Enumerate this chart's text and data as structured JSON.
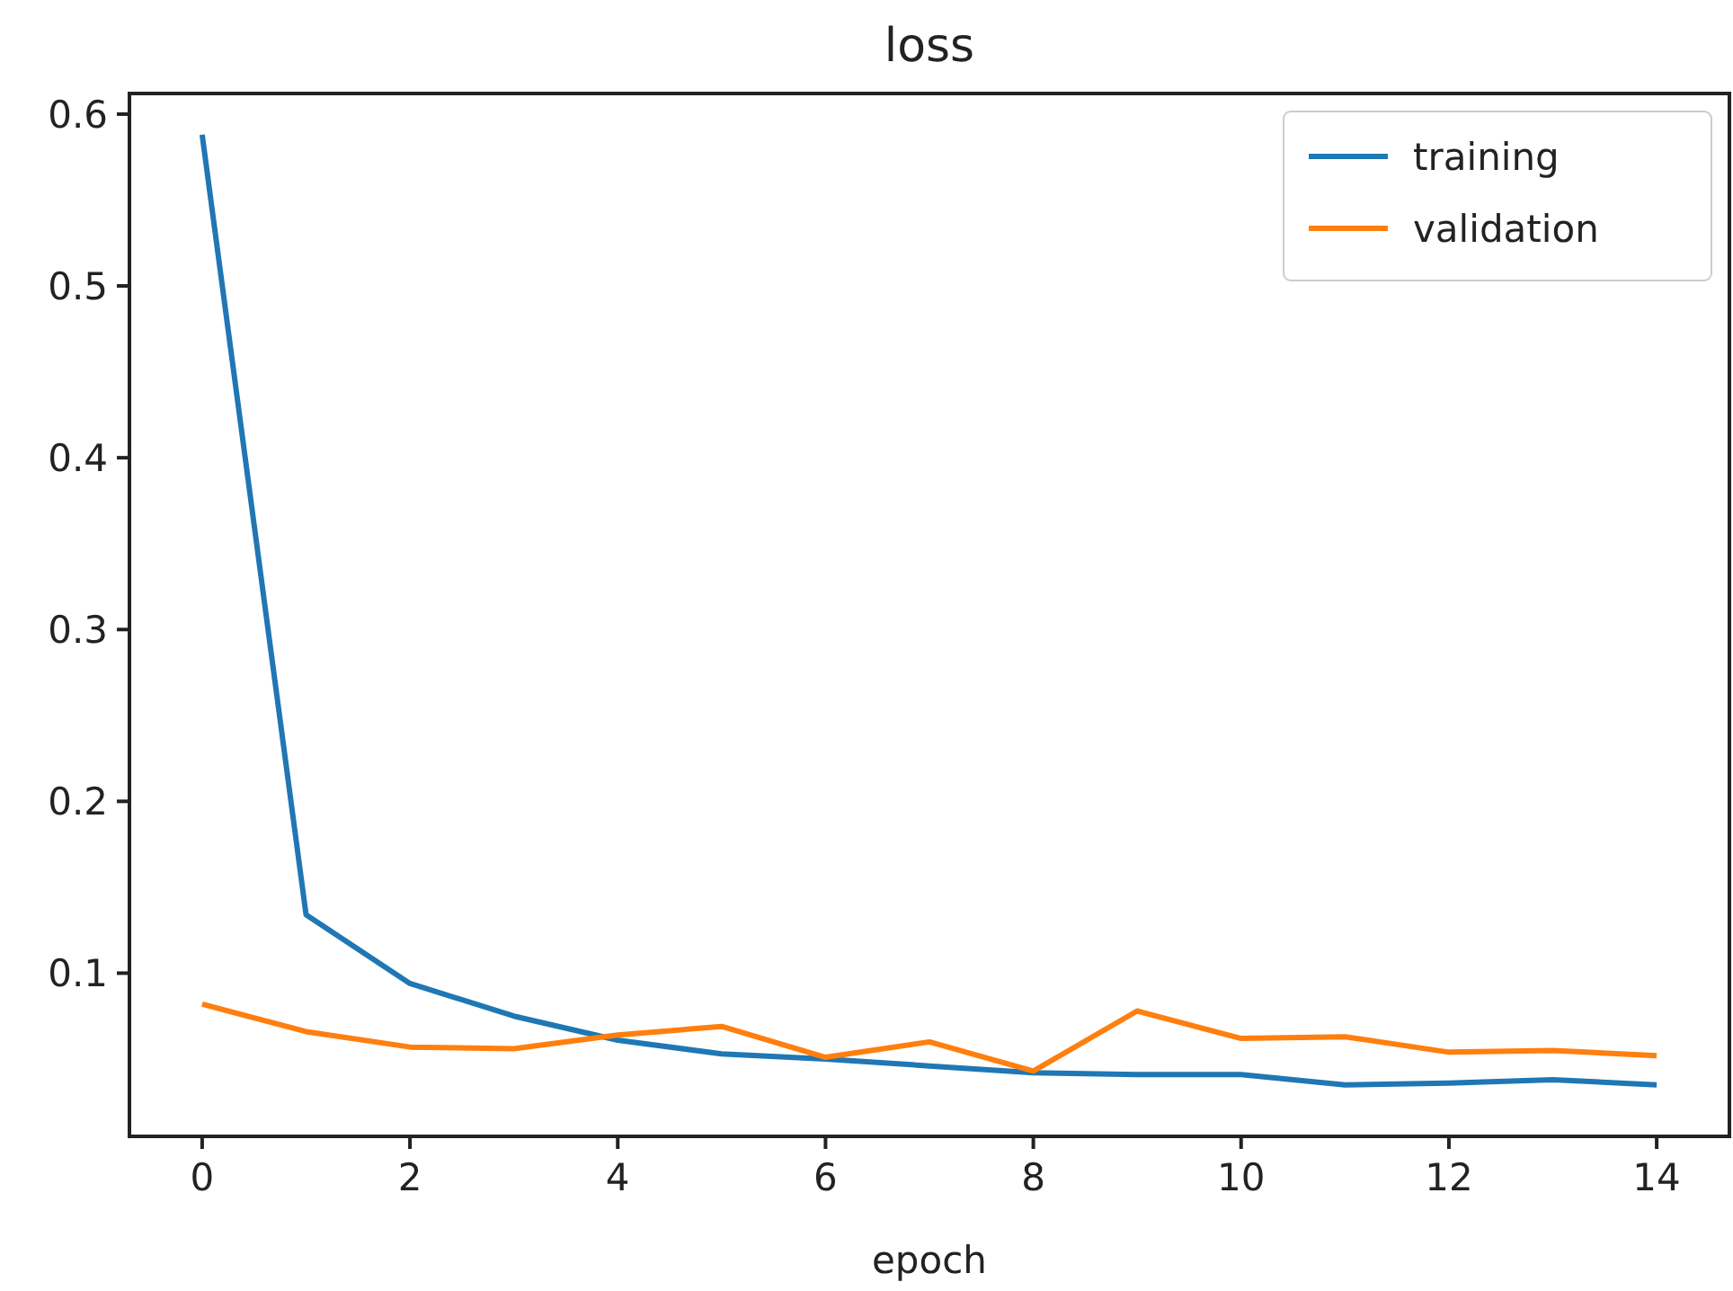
{
  "chart_data": {
    "type": "line",
    "title": "loss",
    "xlabel": "epoch",
    "x": [
      0,
      1,
      2,
      3,
      4,
      5,
      6,
      7,
      8,
      9,
      10,
      11,
      12,
      13,
      14
    ],
    "series": [
      {
        "name": "training",
        "color": "#1f77b4",
        "values": [
          0.588,
          0.134,
          0.094,
          0.075,
          0.061,
          0.053,
          0.05,
          0.046,
          0.042,
          0.041,
          0.041,
          0.035,
          0.036,
          0.038,
          0.035
        ]
      },
      {
        "name": "validation",
        "color": "#ff7f0e",
        "values": [
          0.082,
          0.066,
          0.057,
          0.056,
          0.064,
          0.069,
          0.051,
          0.06,
          0.043,
          0.078,
          0.062,
          0.063,
          0.054,
          0.055,
          0.052
        ]
      }
    ],
    "xlim": [
      -0.7,
      14.7
    ],
    "xticks": [
      0,
      2,
      4,
      6,
      8,
      10,
      12,
      14
    ],
    "ylim": [
      0.005,
      0.612
    ],
    "yticks": [
      0.1,
      0.2,
      0.3,
      0.4,
      0.5,
      0.6
    ],
    "grid": false,
    "legend": "top right",
    "marker": "none",
    "line_style": "solid"
  }
}
